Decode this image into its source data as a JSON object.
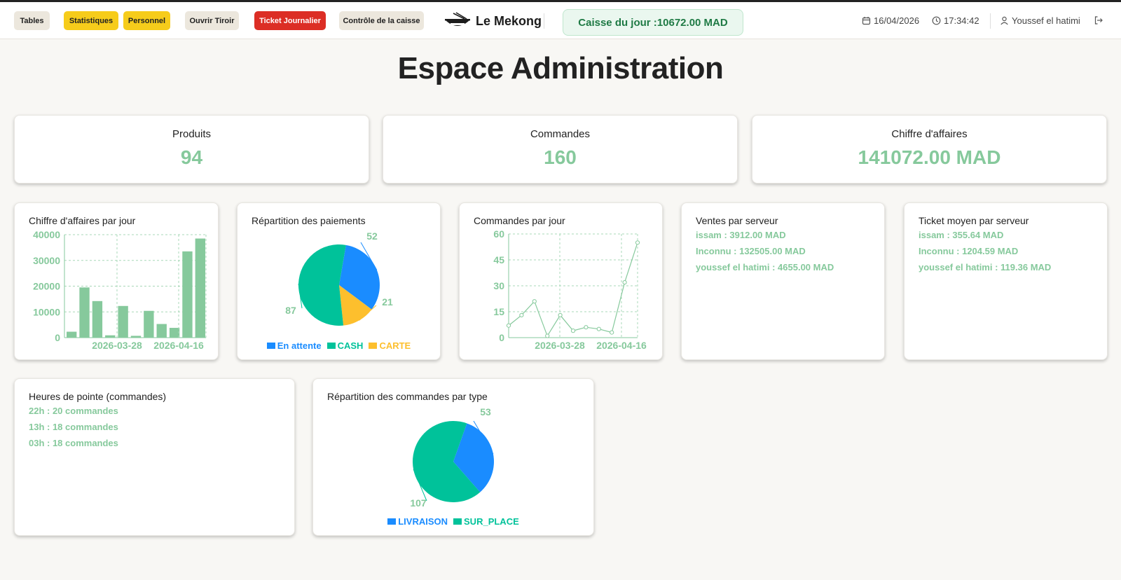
{
  "header": {
    "nav": [
      {
        "label": "Tables"
      },
      {
        "label": "Statistiques"
      },
      {
        "label": "Personnel"
      },
      {
        "label": "Ouvrir Tiroir"
      },
      {
        "label": "Ticket Journalier"
      },
      {
        "label": "Contrôle de la caisse"
      }
    ],
    "brand": "Le Mekong",
    "caisse_label": "Caisse du jour :",
    "caisse_value": "10672.00 MAD",
    "date": "16/04/2026",
    "time": "17:34:42",
    "user": "Youssef el hatimi",
    "colors": {
      "yellow": "#f6cc1b",
      "red": "#dc2e25",
      "beige": "#ece7dd",
      "accent_green": "#86c99c"
    }
  },
  "page": {
    "title": "Espace Administration"
  },
  "stats": [
    {
      "label": "Produits",
      "value": "94"
    },
    {
      "label": "Commandes",
      "value": "160"
    },
    {
      "label": "Chiffre d'affaires",
      "value": "141072.00 MAD"
    }
  ],
  "cards": {
    "ca_jour_title": "Chiffre d'affaires par jour",
    "paiements_title": "Répartition des paiements",
    "commandes_jour_title": "Commandes par jour",
    "ventes_serveur": {
      "title": "Ventes par serveur",
      "items": [
        "issam : 3912.00 MAD",
        "Inconnu : 132505.00 MAD",
        "youssef el hatimi : 4655.00 MAD"
      ]
    },
    "ticket_serveur": {
      "title": "Ticket moyen par serveur",
      "items": [
        "issam : 355.64 MAD",
        "Inconnu : 1204.59 MAD",
        "youssef el hatimi : 119.36 MAD"
      ]
    },
    "heures_pointe": {
      "title": "Heures de pointe (commandes)",
      "items": [
        "22h : 20 commandes",
        "13h : 18 commandes",
        "03h : 18 commandes"
      ]
    },
    "type_title": "Répartition des commandes par type"
  },
  "chart_data": [
    {
      "type": "bar",
      "title": "Chiffre d'affaires par jour",
      "values": [
        2300,
        19500,
        14200,
        900,
        12300,
        700,
        10400,
        5300,
        3800,
        33500,
        38500
      ],
      "x_tick_labels": [
        "2026-03-28",
        "2026-04-16"
      ],
      "y_ticks": [
        "0",
        "10000",
        "20000",
        "30000",
        "40000"
      ],
      "ylim": [
        0,
        40000
      ],
      "color": "#86c99c",
      "grid": true
    },
    {
      "type": "pie",
      "title": "Répartition des paiements",
      "slices": [
        {
          "name": "En attente",
          "value": 52,
          "label": "52",
          "color": "#1a8cff"
        },
        {
          "name": "CARTE",
          "value": 21,
          "label": "21",
          "color": "#fdbf2d"
        },
        {
          "name": "CASH",
          "value": 87,
          "label": "87",
          "color": "#00c29a"
        }
      ],
      "legend": [
        {
          "name": "En attente",
          "color": "#1a8cff"
        },
        {
          "name": "CASH",
          "color": "#00c29a"
        },
        {
          "name": "CARTE",
          "color": "#fdbf2d"
        }
      ],
      "legend_position": "bottom"
    },
    {
      "type": "line",
      "title": "Commandes par jour",
      "values": [
        7,
        13,
        21,
        1,
        13,
        4,
        6,
        5,
        3,
        32,
        55
      ],
      "x_tick_labels": [
        "2026-03-28",
        "2026-04-16"
      ],
      "y_ticks": [
        "0",
        "15",
        "30",
        "45",
        "60"
      ],
      "ylim": [
        0,
        60
      ],
      "color": "#86c99c",
      "grid": true
    },
    {
      "type": "pie",
      "title": "Répartition des commandes par type",
      "slices": [
        {
          "name": "LIVRAISON",
          "value": 53,
          "label": "53",
          "color": "#1a8cff"
        },
        {
          "name": "SUR_PLACE",
          "value": 107,
          "label": "107",
          "color": "#00c29a"
        }
      ],
      "legend": [
        {
          "name": "LIVRAISON",
          "color": "#1a8cff"
        },
        {
          "name": "SUR_PLACE",
          "color": "#00c29a"
        }
      ],
      "legend_position": "bottom"
    }
  ]
}
